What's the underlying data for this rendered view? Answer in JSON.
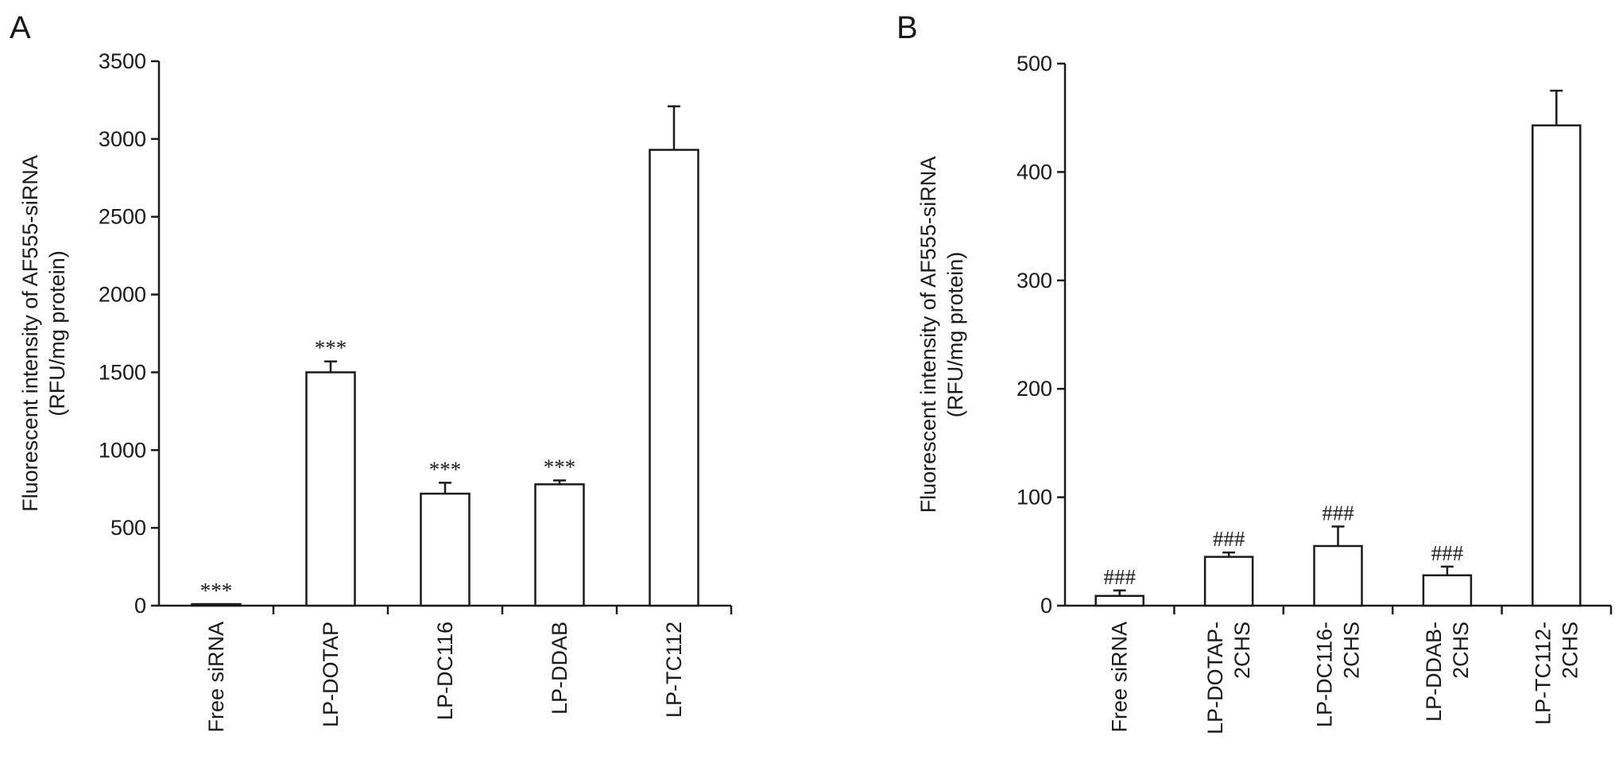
{
  "chart_data": [
    {
      "type": "bar",
      "panel_label": "A",
      "ylabel": [
        "Fluorescent intensity of AF555-siRNA",
        "(RFU/mg protein)"
      ],
      "xlabel": "",
      "ylim": [
        0,
        3500
      ],
      "yticks": [
        0,
        500,
        1000,
        1500,
        2000,
        2500,
        3000,
        3500
      ],
      "categories": [
        [
          "Free siRNA"
        ],
        [
          "LP-DOTAP"
        ],
        [
          "LP-DC116"
        ],
        [
          "LP-DDAB"
        ],
        [
          "LP-TC112"
        ]
      ],
      "values": [
        10,
        1500,
        720,
        780,
        2930
      ],
      "errors": [
        0,
        70,
        70,
        25,
        280
      ],
      "significance": [
        "***",
        "***",
        "***",
        "***",
        ""
      ],
      "grid": false,
      "bar_color": "#ffffff",
      "edge_color": "#1a1a1a"
    },
    {
      "type": "bar",
      "panel_label": "B",
      "ylabel": [
        "Fluorescent intensity of AF555-siRNA",
        "(RFU/mg protein)"
      ],
      "xlabel": "",
      "ylim": [
        0,
        500
      ],
      "yticks": [
        0,
        100,
        200,
        300,
        400,
        500
      ],
      "categories": [
        [
          "Free siRNA"
        ],
        [
          "LP-DOTAP-",
          "2CHS"
        ],
        [
          "LP-DC116-",
          "2CHS"
        ],
        [
          "LP-DDAB-",
          "2CHS"
        ],
        [
          "LP-TC112-",
          "2CHS"
        ]
      ],
      "values": [
        9,
        45,
        55,
        28,
        443
      ],
      "errors": [
        5,
        4,
        18,
        8,
        32
      ],
      "significance": [
        "###",
        "###",
        "###",
        "###",
        ""
      ],
      "grid": false,
      "bar_color": "#ffffff",
      "edge_color": "#1a1a1a"
    }
  ]
}
